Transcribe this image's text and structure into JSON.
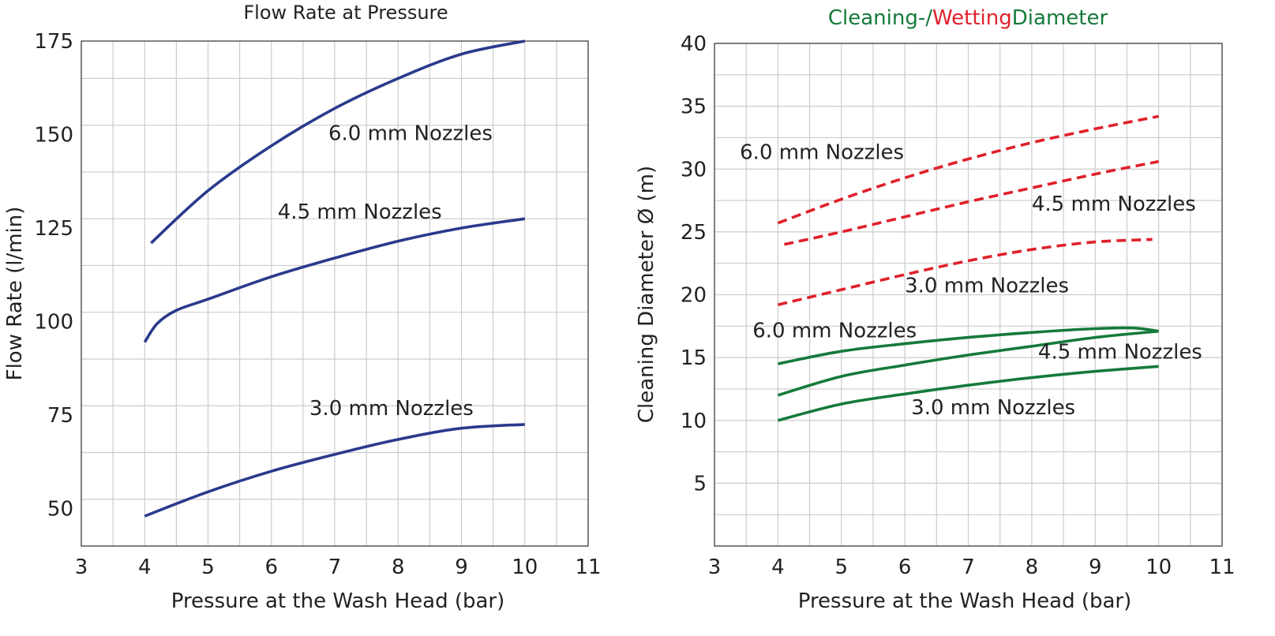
{
  "colors": {
    "grid": "#cccccc",
    "axis": "#333333",
    "flow": "#2a3a8c",
    "wetting": "#e0202a",
    "cleaning": "#157a3a",
    "text": "#222222"
  },
  "chart_data": [
    {
      "type": "line",
      "title": "Flow Rate at Pressure",
      "xlabel": "Pressure at the Wash Head (bar)",
      "ylabel": "Flow Rate (l/min)",
      "xlim": [
        3,
        11
      ],
      "ylim": [
        40,
        175
      ],
      "xticks": [
        3,
        4,
        5,
        6,
        7,
        8,
        9,
        10,
        11
      ],
      "yticks": [
        50,
        75,
        100,
        125,
        150,
        175
      ],
      "xgrid_step": 0.5,
      "ygrid_step": 12.5,
      "grid": true,
      "series": [
        {
          "name": "6.0 mm Nozzles",
          "style": "solid",
          "color_key": "flow",
          "points": [
            [
              4.1,
              121
            ],
            [
              5,
              135
            ],
            [
              6,
              147
            ],
            [
              7,
              157
            ],
            [
              8,
              165
            ],
            [
              9,
              171.5
            ],
            [
              10,
              175
            ]
          ]
        },
        {
          "name": "4.5 mm Nozzles",
          "style": "solid",
          "color_key": "flow",
          "points": [
            [
              4.0,
              94.5
            ],
            [
              4.2,
              99.5
            ],
            [
              4.5,
              103
            ],
            [
              5,
              106
            ],
            [
              6,
              112
            ],
            [
              7,
              117
            ],
            [
              8,
              121.5
            ],
            [
              9,
              125
            ],
            [
              10,
              127.5
            ]
          ]
        },
        {
          "name": "3.0 mm Nozzles",
          "style": "solid",
          "color_key": "flow",
          "points": [
            [
              4.0,
              48
            ],
            [
              5,
              54.5
            ],
            [
              6,
              60
            ],
            [
              7,
              64.5
            ],
            [
              8,
              68.5
            ],
            [
              9,
              71.5
            ],
            [
              10,
              72.5
            ]
          ]
        }
      ],
      "annotations": [
        {
          "text": "6.0 mm Nozzles",
          "x": 6.9,
          "y": 148.5
        },
        {
          "text": "4.5 mm Nozzles",
          "x": 6.1,
          "y": 127.5
        },
        {
          "text": "3.0 mm Nozzles",
          "x": 6.6,
          "y": 75
        }
      ]
    },
    {
      "type": "line",
      "title_parts": [
        {
          "text": "Cleaning-/",
          "color_key": "cleaning"
        },
        {
          "text": "Wetting",
          "color_key": "wetting"
        },
        {
          "text": "Diameter",
          "color_key": "cleaning"
        }
      ],
      "xlabel": "Pressure at the Wash Head (bar)",
      "ylabel": "Cleaning Diameter Ø (m)",
      "xlim": [
        3,
        11
      ],
      "ylim": [
        0,
        40
      ],
      "xticks": [
        3,
        4,
        5,
        6,
        7,
        8,
        9,
        10,
        11
      ],
      "yticks": [
        5,
        10,
        15,
        20,
        25,
        30,
        35,
        40
      ],
      "xgrid_step": 0.5,
      "ygrid_step": 2.5,
      "grid": true,
      "series": [
        {
          "name": "6.0 mm Nozzles",
          "style": "dashed",
          "color_key": "wetting",
          "points": [
            [
              4.0,
              25.7
            ],
            [
              5,
              27.6
            ],
            [
              6,
              29.3
            ],
            [
              7,
              30.8
            ],
            [
              8,
              32.1
            ],
            [
              9,
              33.2
            ],
            [
              10,
              34.2
            ]
          ]
        },
        {
          "name": "4.5 mm Nozzles",
          "style": "dashed",
          "color_key": "wetting",
          "points": [
            [
              4.1,
              24.0
            ],
            [
              5,
              25.0
            ],
            [
              6,
              26.2
            ],
            [
              7,
              27.4
            ],
            [
              8,
              28.5
            ],
            [
              9,
              29.6
            ],
            [
              10,
              30.6
            ]
          ]
        },
        {
          "name": "3.0 mm Nozzles",
          "style": "dashed",
          "color_key": "wetting",
          "points": [
            [
              4.0,
              19.2
            ],
            [
              5,
              20.4
            ],
            [
              6,
              21.6
            ],
            [
              7,
              22.7
            ],
            [
              8,
              23.6
            ],
            [
              9,
              24.2
            ],
            [
              9.9,
              24.4
            ]
          ]
        },
        {
          "name": "6.0 mm Nozzles",
          "style": "solid",
          "color_key": "cleaning",
          "points": [
            [
              4.0,
              14.5
            ],
            [
              5,
              15.5
            ],
            [
              6,
              16.1
            ],
            [
              7,
              16.6
            ],
            [
              8,
              17.0
            ],
            [
              9,
              17.3
            ],
            [
              9.6,
              17.35
            ],
            [
              10,
              17.1
            ]
          ]
        },
        {
          "name": "4.5 mm Nozzles",
          "style": "solid",
          "color_key": "cleaning",
          "points": [
            [
              4.0,
              12.0
            ],
            [
              5,
              13.5
            ],
            [
              6,
              14.4
            ],
            [
              7,
              15.2
            ],
            [
              8,
              15.9
            ],
            [
              9,
              16.6
            ],
            [
              10,
              17.1
            ]
          ]
        },
        {
          "name": "3.0 mm Nozzles",
          "style": "solid",
          "color_key": "cleaning",
          "points": [
            [
              4.0,
              10.0
            ],
            [
              5,
              11.3
            ],
            [
              6,
              12.1
            ],
            [
              7,
              12.8
            ],
            [
              8,
              13.4
            ],
            [
              9,
              13.9
            ],
            [
              10,
              14.3
            ]
          ]
        }
      ],
      "annotations": [
        {
          "text": "6.0 mm Nozzles",
          "x": 3.4,
          "y": 30.8
        },
        {
          "text": "4.5 mm Nozzles",
          "x": 8.0,
          "y": 26.7
        },
        {
          "text": "3.0 mm Nozzles",
          "x": 6.0,
          "y": 20.2
        },
        {
          "text": "6.0 mm Nozzles",
          "x": 3.6,
          "y": 16.6
        },
        {
          "text": "4.5 mm Nozzles",
          "x": 8.1,
          "y": 14.9
        },
        {
          "text": "3.0 mm Nozzles",
          "x": 6.1,
          "y": 10.5
        }
      ]
    }
  ]
}
